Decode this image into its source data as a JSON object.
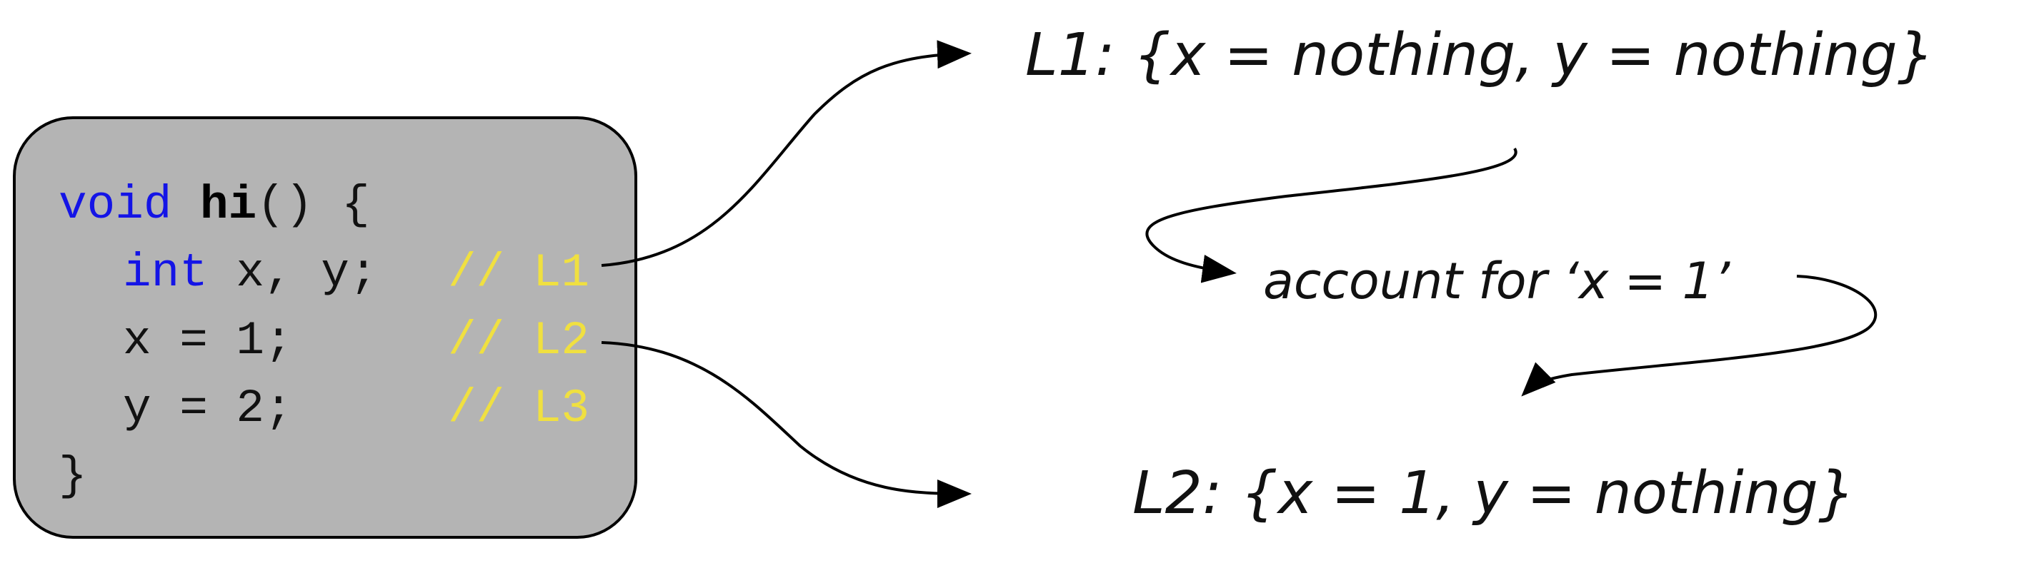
{
  "code": {
    "lines": [
      {
        "kw": "void",
        "fn": "hi",
        "rest": "() {"
      },
      {
        "kw": "int",
        "rest": " x, y;",
        "comment": "// L1"
      },
      {
        "rest": "x = 1;",
        "comment": "// L2"
      },
      {
        "rest": "y = 2;",
        "comment": "// L3"
      },
      {
        "rest": "}"
      }
    ]
  },
  "states": {
    "l1": "L1: {x = nothing, y = nothing}",
    "l2": "L2: {x = 1, y = nothing}"
  },
  "transition": {
    "label": "account for ‘x = 1’"
  },
  "colors": {
    "code_background": "#b4b4b4",
    "keyword": "#1414e6",
    "comment": "#f0e040"
  }
}
